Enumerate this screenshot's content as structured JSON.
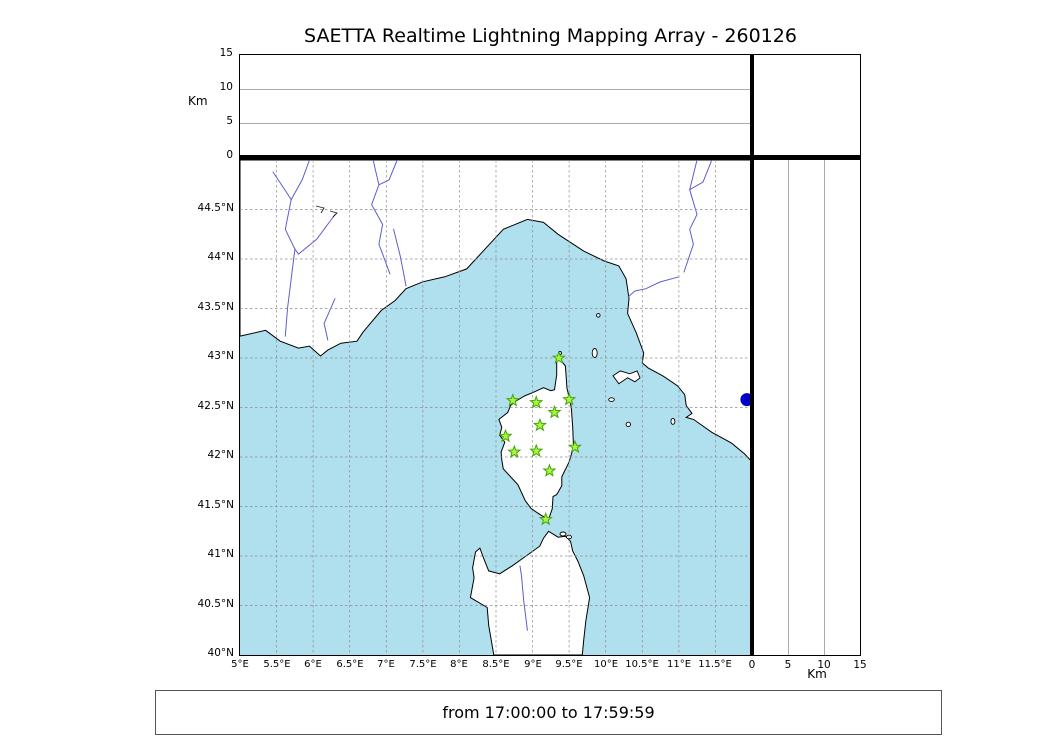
{
  "title": "SAETTA Realtime Lightning Mapping Array - 260126",
  "footer": {
    "text": "from 17:00:00 to 17:59:59"
  },
  "axes": {
    "altitude": {
      "label": "Km",
      "range_km": [
        0,
        15
      ],
      "gridlines_km": [
        5,
        10
      ],
      "ticks": [
        {
          "label": "0",
          "v": 0
        },
        {
          "label": "5",
          "v": 5
        },
        {
          "label": "10",
          "v": 10
        },
        {
          "label": "15",
          "v": 15
        }
      ]
    },
    "latitude": {
      "range_deg": [
        40,
        45
      ],
      "ticks": [
        {
          "label": "44.5°N",
          "v": 44.5
        },
        {
          "label": "44°N",
          "v": 44
        },
        {
          "label": "43.5°N",
          "v": 43.5
        },
        {
          "label": "43°N",
          "v": 43
        },
        {
          "label": "42.5°N",
          "v": 42.5
        },
        {
          "label": "42°N",
          "v": 42
        },
        {
          "label": "41.5°N",
          "v": 41.5
        },
        {
          "label": "41°N",
          "v": 41
        },
        {
          "label": "40.5°N",
          "v": 40.5
        },
        {
          "label": "40°N",
          "v": 40
        }
      ]
    },
    "longitude": {
      "range_deg": [
        5,
        12
      ],
      "ticks": [
        {
          "label": "5°E",
          "v": 5
        },
        {
          "label": "5.5°E",
          "v": 5.5
        },
        {
          "label": "6°E",
          "v": 6
        },
        {
          "label": "6.5°E",
          "v": 6.5
        },
        {
          "label": "7°E",
          "v": 7
        },
        {
          "label": "7.5°E",
          "v": 7.5
        },
        {
          "label": "8°E",
          "v": 8
        },
        {
          "label": "8.5°E",
          "v": 8.5
        },
        {
          "label": "9°E",
          "v": 9
        },
        {
          "label": "9.5°E",
          "v": 9.5
        },
        {
          "label": "10°E",
          "v": 10
        },
        {
          "label": "10.5°E",
          "v": 10.5
        },
        {
          "label": "11°E",
          "v": 11
        },
        {
          "label": "11.5°E",
          "v": 11.5
        }
      ]
    }
  },
  "colors": {
    "sea": "#b0dfee",
    "land": "#ffffff",
    "coast": "#000000",
    "river": "#5d5dcf",
    "grid": "#8c8c8c",
    "panel_grid": "#aaaaaa",
    "station_fill": "#adf53c",
    "station_edge": "#3fa50a",
    "event_dot": "#0000c8"
  },
  "chart_data": {
    "type": "scatter",
    "title": "SAETTA Realtime Lightning Mapping Array - 260126",
    "time_window": "from 17:00:00 to 17:59:59",
    "layout": "main geographic panel (longitude 5-12°E × latitude 40-45°N) with 0.5° dashed graticule; top strip = altitude 0-15 km vs longitude; right strip = altitude 0-15 km vs latitude; altitude gridlines at 5 and 10 km",
    "map_region": "Corsica and NW Mediterranean: southern France coast, Liguria/Tuscany coast of Italy, northern Sardinia, Elba and Tuscan islands",
    "stations": {
      "marker": "star",
      "points": [
        {
          "lon": 9.36,
          "lat": 43.0
        },
        {
          "lon": 8.73,
          "lat": 42.57
        },
        {
          "lon": 9.05,
          "lat": 42.55
        },
        {
          "lon": 9.5,
          "lat": 42.58
        },
        {
          "lon": 9.3,
          "lat": 42.45
        },
        {
          "lon": 9.1,
          "lat": 42.32
        },
        {
          "lon": 8.63,
          "lat": 42.21
        },
        {
          "lon": 9.58,
          "lat": 42.1
        },
        {
          "lon": 8.75,
          "lat": 42.05
        },
        {
          "lon": 9.05,
          "lat": 42.06
        },
        {
          "lon": 9.23,
          "lat": 41.86
        },
        {
          "lon": 9.18,
          "lat": 41.37
        }
      ]
    },
    "event_points": [
      {
        "lon": 11.93,
        "lat": 42.58,
        "alt_km": 0
      }
    ]
  }
}
